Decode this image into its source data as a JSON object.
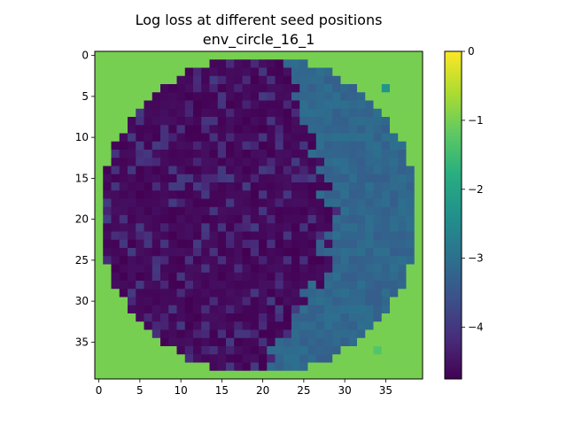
{
  "chart_data": {
    "type": "heatmap",
    "title": "Log loss at different seed positions",
    "subtitle": "env_circle_16_1",
    "xlabel": "",
    "ylabel": "",
    "grid_size": [
      40,
      40
    ],
    "x_range": [
      0,
      39
    ],
    "y_range": [
      0,
      39
    ],
    "y_axis_inverted": true,
    "x_ticks": [
      0,
      5,
      10,
      15,
      20,
      25,
      30,
      35
    ],
    "y_ticks": [
      0,
      5,
      10,
      15,
      20,
      25,
      30,
      35
    ],
    "colormap": "viridis",
    "colorbar": {
      "range": [
        -4.75,
        0
      ],
      "ticks": [
        0,
        -1,
        -2,
        -3,
        -4
      ]
    },
    "outside_circle_value": -1.0,
    "circle": {
      "center": [
        19.5,
        19.5
      ],
      "radius": 19.5
    },
    "values_note": "Inside the circle, the left/central region is mostly around -4.5 to -4.75 (dark purple) with scattered cells near -4; the right region (x > ~24) is mostly around -3.0 to -3.3 (blue). Cells outside the circle are about -1.0 (green).",
    "annotations": [
      {
        "x": 35,
        "y": 4,
        "value": -2.3
      },
      {
        "x": 34,
        "y": 36,
        "value": -1.3
      }
    ]
  }
}
